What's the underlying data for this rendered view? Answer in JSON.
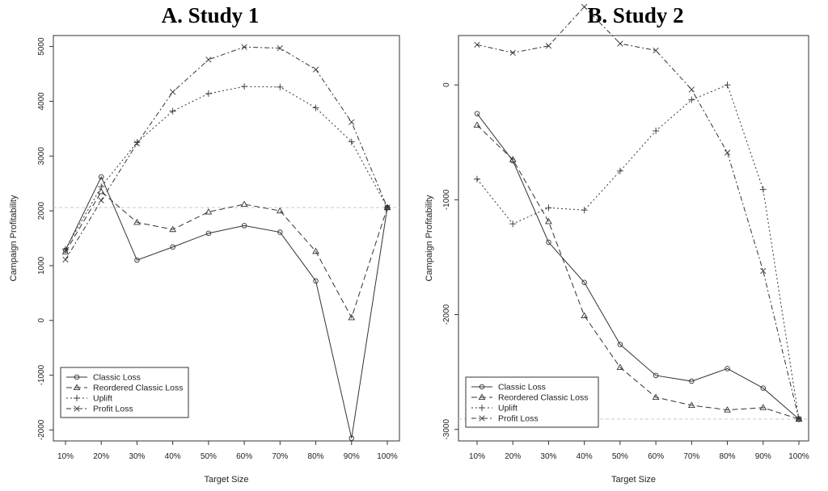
{
  "chart_data": [
    {
      "type": "line",
      "title": "A. Study 1",
      "xlabel": "Target Size",
      "ylabel": "Campaign Profitability",
      "categories": [
        "10%",
        "20%",
        "30%",
        "40%",
        "50%",
        "60%",
        "70%",
        "80%",
        "90%",
        "100%"
      ],
      "yticks": [
        -2000,
        -1000,
        0,
        1000,
        2000,
        3000,
        4000,
        5000
      ],
      "ylim": [
        -2200,
        5200
      ],
      "baseline": 2060,
      "grid": false,
      "legend_position": "bottom-left",
      "series": [
        {
          "name": "Classic Loss",
          "marker": "circle",
          "dash": "",
          "values": [
            1280,
            2620,
            1100,
            1340,
            1590,
            1730,
            1610,
            720,
            -2150,
            2060
          ]
        },
        {
          "name": "Reordered Classic Loss",
          "marker": "triangle",
          "dash": "7,4",
          "values": [
            1250,
            2350,
            1790,
            1660,
            1980,
            2120,
            2000,
            1260,
            50,
            2060
          ]
        },
        {
          "name": "Uplift",
          "marker": "plus",
          "dash": "2,3",
          "values": [
            1300,
            2440,
            3250,
            3820,
            4140,
            4270,
            4260,
            3880,
            3260,
            2060
          ]
        },
        {
          "name": "Profit Loss",
          "marker": "x",
          "dash": "6,3,2,3",
          "values": [
            1110,
            2190,
            3230,
            4170,
            4760,
            4990,
            4970,
            4580,
            3620,
            2060
          ]
        }
      ]
    },
    {
      "type": "line",
      "title": "B. Study 2",
      "xlabel": "Target Size",
      "ylabel": "Campaign Profitability",
      "categories": [
        "10%",
        "20%",
        "30%",
        "40%",
        "50%",
        "60%",
        "70%",
        "80%",
        "90%",
        "100%"
      ],
      "yticks": [
        -3000,
        -2000,
        -1000,
        0
      ],
      "ylim": [
        -3100,
        430
      ],
      "baseline": -2910,
      "grid": false,
      "legend_position": "bottom-left",
      "series": [
        {
          "name": "Classic Loss",
          "marker": "circle",
          "dash": "",
          "values": [
            -250,
            -660,
            -1370,
            -1720,
            -2260,
            -2530,
            -2580,
            -2470,
            -2640,
            -2910
          ]
        },
        {
          "name": "Reordered Classic Loss",
          "marker": "triangle",
          "dash": "7,4",
          "values": [
            -350,
            -650,
            -1190,
            -2010,
            -2460,
            -2720,
            -2790,
            -2830,
            -2810,
            -2910
          ]
        },
        {
          "name": "Uplift",
          "marker": "plus",
          "dash": "2,3",
          "values": [
            -820,
            -1210,
            -1070,
            -1090,
            -750,
            -400,
            -130,
            0,
            -910,
            -2910
          ]
        },
        {
          "name": "Profit Loss",
          "marker": "x",
          "dash": "6,3,2,3",
          "values": [
            350,
            280,
            340,
            680,
            360,
            300,
            -40,
            -590,
            -1620,
            -2910
          ]
        }
      ]
    }
  ]
}
